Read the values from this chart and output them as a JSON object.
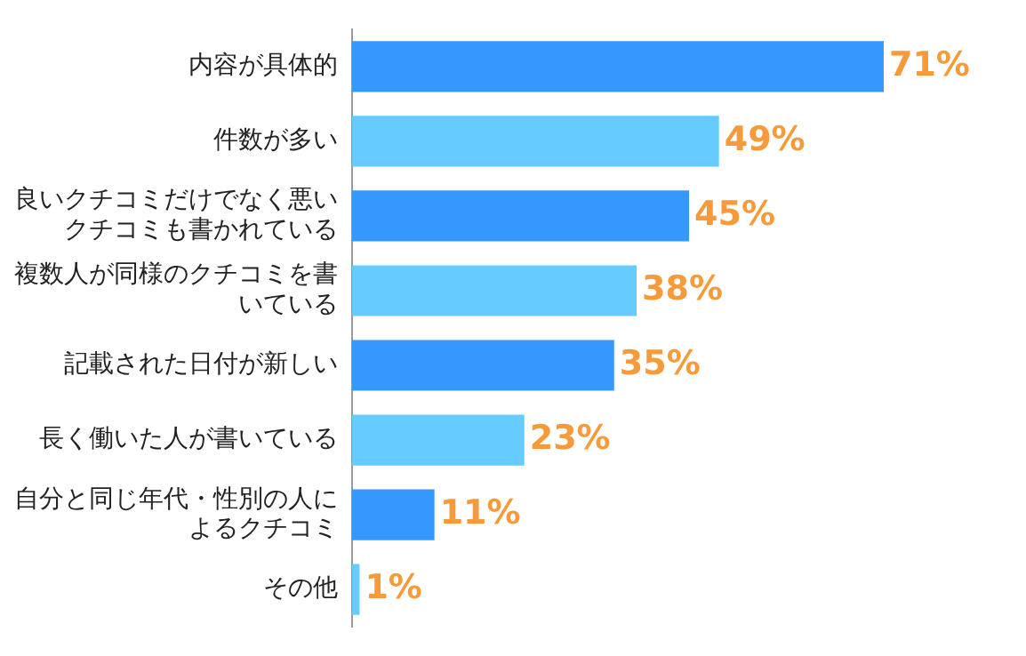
{
  "chart_data": {
    "type": "bar",
    "orientation": "horizontal",
    "data_labels": true,
    "legend": false,
    "categories": [
      "内容が具体的",
      "件数が多い",
      "良いクチコミだけでなく悪いクチコミも書かれている",
      "複数人が同様のクチコミを書いている",
      "記載された日付が新しい",
      "長く働いた人が書いている",
      "自分と同じ年代・性別の人によるクチコミ",
      "その他"
    ],
    "values": [
      71,
      49,
      45,
      38,
      35,
      23,
      11,
      1
    ],
    "colors": [
      "#3399ff",
      "#66ccff",
      "#3399ff",
      "#66ccff",
      "#3399ff",
      "#66ccff",
      "#3399ff",
      "#66ccff"
    ],
    "value_labels": [
      "71%",
      "49%",
      "45%",
      "38%",
      "35%",
      "23%",
      "11%",
      "1%"
    ]
  }
}
